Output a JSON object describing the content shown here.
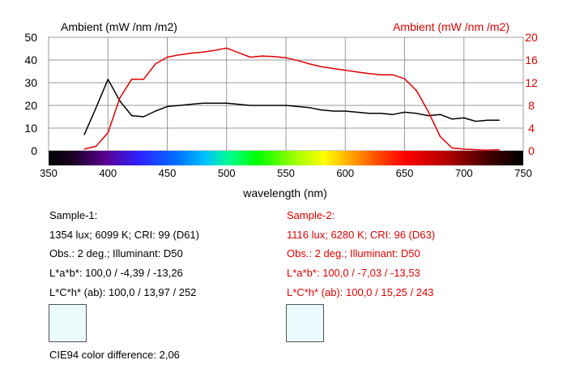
{
  "chart_data": {
    "type": "line",
    "left_axis_title": "Ambient (mW /nm /m2)",
    "right_axis_title": "Ambient (mW /nm /m2)",
    "xlabel": "wavelength (nm)",
    "xlim": [
      350,
      750
    ],
    "ylim_left": [
      0,
      50
    ],
    "ylim_right": [
      0,
      20
    ],
    "x_ticks": [
      350,
      400,
      450,
      500,
      550,
      600,
      650,
      700,
      750
    ],
    "y_ticks_left": [
      0,
      10,
      20,
      30,
      40,
      50
    ],
    "y_ticks_right": [
      0,
      4,
      8,
      12,
      16,
      20
    ],
    "grid": true,
    "spectrum_bar": true,
    "series": [
      {
        "color": "#000000",
        "axis": "left",
        "x": [
          380,
          390,
          400,
          410,
          420,
          430,
          440,
          450,
          460,
          470,
          480,
          490,
          500,
          510,
          520,
          530,
          540,
          550,
          560,
          570,
          580,
          590,
          600,
          610,
          620,
          630,
          640,
          650,
          660,
          670,
          680,
          690,
          700,
          710,
          720,
          730
        ],
        "y": [
          7,
          19,
          31.5,
          22,
          15.5,
          15,
          17.5,
          19.5,
          20,
          20.5,
          21,
          21,
          21,
          20.5,
          20,
          20,
          20,
          20,
          19.5,
          19,
          18,
          17.5,
          17.5,
          17,
          16.5,
          16.5,
          16,
          17,
          16.5,
          15.5,
          16,
          14,
          14.5,
          13,
          13.5,
          13.5
        ]
      },
      {
        "color": "#e00000",
        "axis": "right",
        "x": [
          380,
          390,
          400,
          410,
          420,
          430,
          440,
          450,
          460,
          470,
          480,
          490,
          500,
          510,
          520,
          530,
          540,
          550,
          560,
          570,
          580,
          590,
          600,
          610,
          620,
          630,
          640,
          650,
          660,
          670,
          680,
          690,
          700,
          710,
          720,
          730
        ],
        "y": [
          0.3,
          0.8,
          3.2,
          9.3,
          12.6,
          12.6,
          15.3,
          16.5,
          16.9,
          17.2,
          17.4,
          17.7,
          18.1,
          17.3,
          16.5,
          16.7,
          16.6,
          16.4,
          15.9,
          15.3,
          14.8,
          14.5,
          14.2,
          13.9,
          13.6,
          13.4,
          13.4,
          12.7,
          10.6,
          6.9,
          2.5,
          0.5,
          0.3,
          0.2,
          0.1,
          0.2
        ]
      }
    ]
  },
  "sample1": {
    "title": "Sample-1:",
    "line1": "1354 lux; 6099 K; CRI: 99 (D61)",
    "line2": "Obs.: 2 deg.; Illuminant: D50",
    "line3": "L*a*b*: 100,0 / -4,39 / -13,26",
    "line4": "L*C*h* (ab): 100,0 / 13,97 / 252",
    "swatch_color": "#e9fbfa"
  },
  "sample2": {
    "title": "Sample-2:",
    "line1": "1116 lux; 6280 K; CRI: 96 (D63)",
    "line2": "Obs.: 2 deg.; Illuminant: D50",
    "line3": "L*a*b*: 100,0 / -7,03 / -13,53",
    "line4": "L*C*h* (ab): 100,0 / 15,25 / 243",
    "swatch_color": "#e9fbfc"
  },
  "difference": "CIE94 color difference: 2,06"
}
